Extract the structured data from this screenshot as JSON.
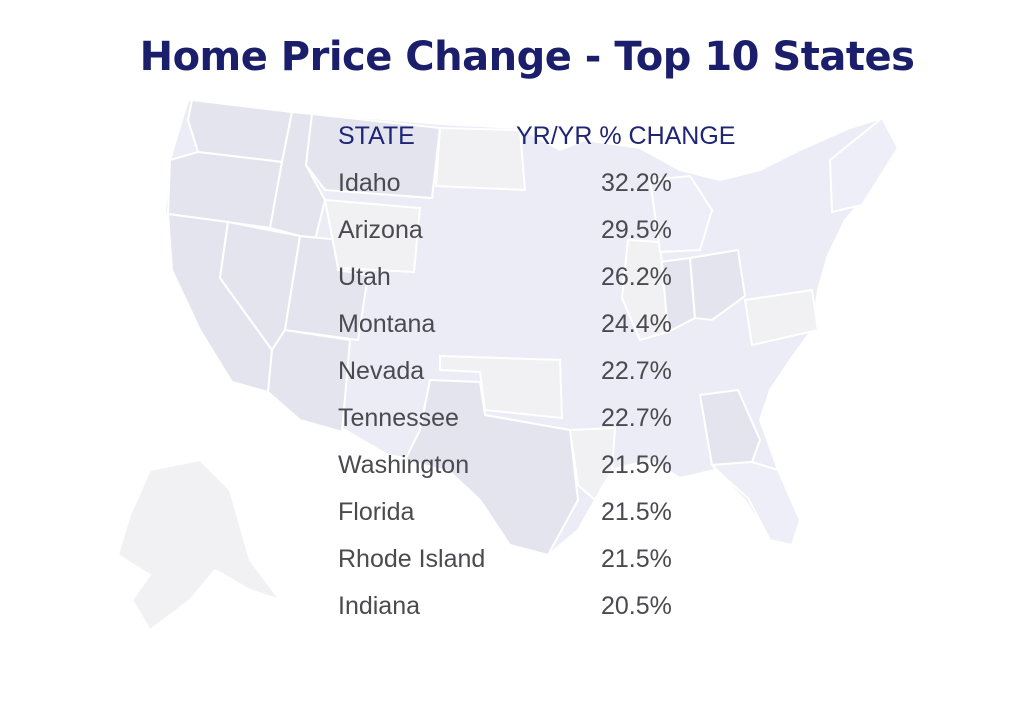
{
  "chart_data": {
    "type": "table",
    "title": "Home Price Change - Top 10 States",
    "columns": [
      "STATE",
      "YR/YR % CHANGE"
    ],
    "rows": [
      {
        "state": "Idaho",
        "change": "32.2%"
      },
      {
        "state": "Arizona",
        "change": "29.5%"
      },
      {
        "state": "Utah",
        "change": "26.2%"
      },
      {
        "state": "Montana",
        "change": "24.4%"
      },
      {
        "state": "Nevada",
        "change": "22.7%"
      },
      {
        "state": "Tennessee",
        "change": "22.7%"
      },
      {
        "state": "Washington",
        "change": "21.5%"
      },
      {
        "state": "Florida",
        "change": "21.5%"
      },
      {
        "state": "Rhode Island",
        "change": "21.5%"
      },
      {
        "state": "Indiana",
        "change": "20.5%"
      }
    ]
  },
  "colors": {
    "title": "#1b1f6b",
    "header_text": "#1f2574",
    "body_text": "#4a4a50",
    "map_lavender": "#ececf6",
    "map_grey": "#f1f1f3"
  },
  "background": {
    "icon": "us-map-icon"
  }
}
